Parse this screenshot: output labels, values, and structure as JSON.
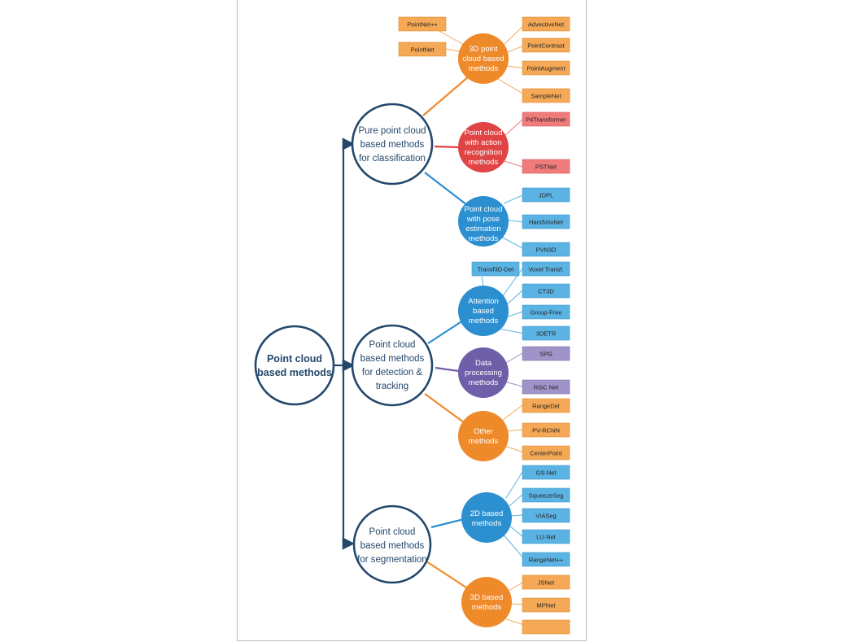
{
  "colors": {
    "navy": "#24486c",
    "orange": "#ef8a2a",
    "red": "#e04444",
    "blue": "#2b8fd0",
    "purple": "#6f5ea8",
    "box_orange": "#f5a957",
    "box_red": "#ef7b7b",
    "box_blue": "#5bb3e3",
    "box_purple": "#9f93c8"
  },
  "root": {
    "line1": "Point cloud",
    "line2": "based methods"
  },
  "branches": [
    {
      "lines": [
        "Pure point cloud",
        "based methods",
        "for classification"
      ],
      "groups": [
        {
          "lines": [
            "3D point",
            "cloud based",
            "methods"
          ],
          "color": "orange",
          "items": [
            "PointNet++",
            "PointNet",
            "AdvectiveNet",
            "PointContrast",
            "PointAugment",
            "SampleNet"
          ]
        },
        {
          "lines": [
            "Point cloud",
            "with action",
            "recognition",
            "methods"
          ],
          "color": "red",
          "items": [
            "P4Transformer",
            "PSTNet"
          ]
        },
        {
          "lines": [
            "Point cloud",
            "with pose",
            "estimation",
            "methods"
          ],
          "color": "blue",
          "items": [
            "JDPL",
            "HandVoxNet",
            "PVN3D"
          ]
        }
      ]
    },
    {
      "lines": [
        "Point cloud",
        "based methods",
        "for detection &",
        "tracking"
      ],
      "groups": [
        {
          "lines": [
            "Attention",
            "based",
            "methods"
          ],
          "color": "blue",
          "items": [
            "Transf3D-Det",
            "Voxel Transf.",
            "CT3D",
            "Group-Free",
            "3DETR"
          ]
        },
        {
          "lines": [
            "Data",
            "processing",
            "methods"
          ],
          "color": "purple",
          "items": [
            "SPG",
            "RGC Net"
          ]
        },
        {
          "lines": [
            "Other",
            "methods"
          ],
          "color": "orange",
          "items": [
            "RangeDet",
            "PV-RCNN",
            "CenterPoint"
          ]
        }
      ]
    },
    {
      "lines": [
        "Point cloud",
        "based methods",
        "for segmentation"
      ],
      "groups": [
        {
          "lines": [
            "2D based",
            "methods"
          ],
          "color": "blue",
          "items": [
            "GS-Net",
            "SqueezeSeg",
            "VIASeg",
            "LU-Net",
            "RangeNet++"
          ]
        },
        {
          "lines": [
            "3D based",
            "methods"
          ],
          "color": "orange",
          "items": [
            "JSNet",
            "MPNet"
          ]
        }
      ]
    }
  ]
}
